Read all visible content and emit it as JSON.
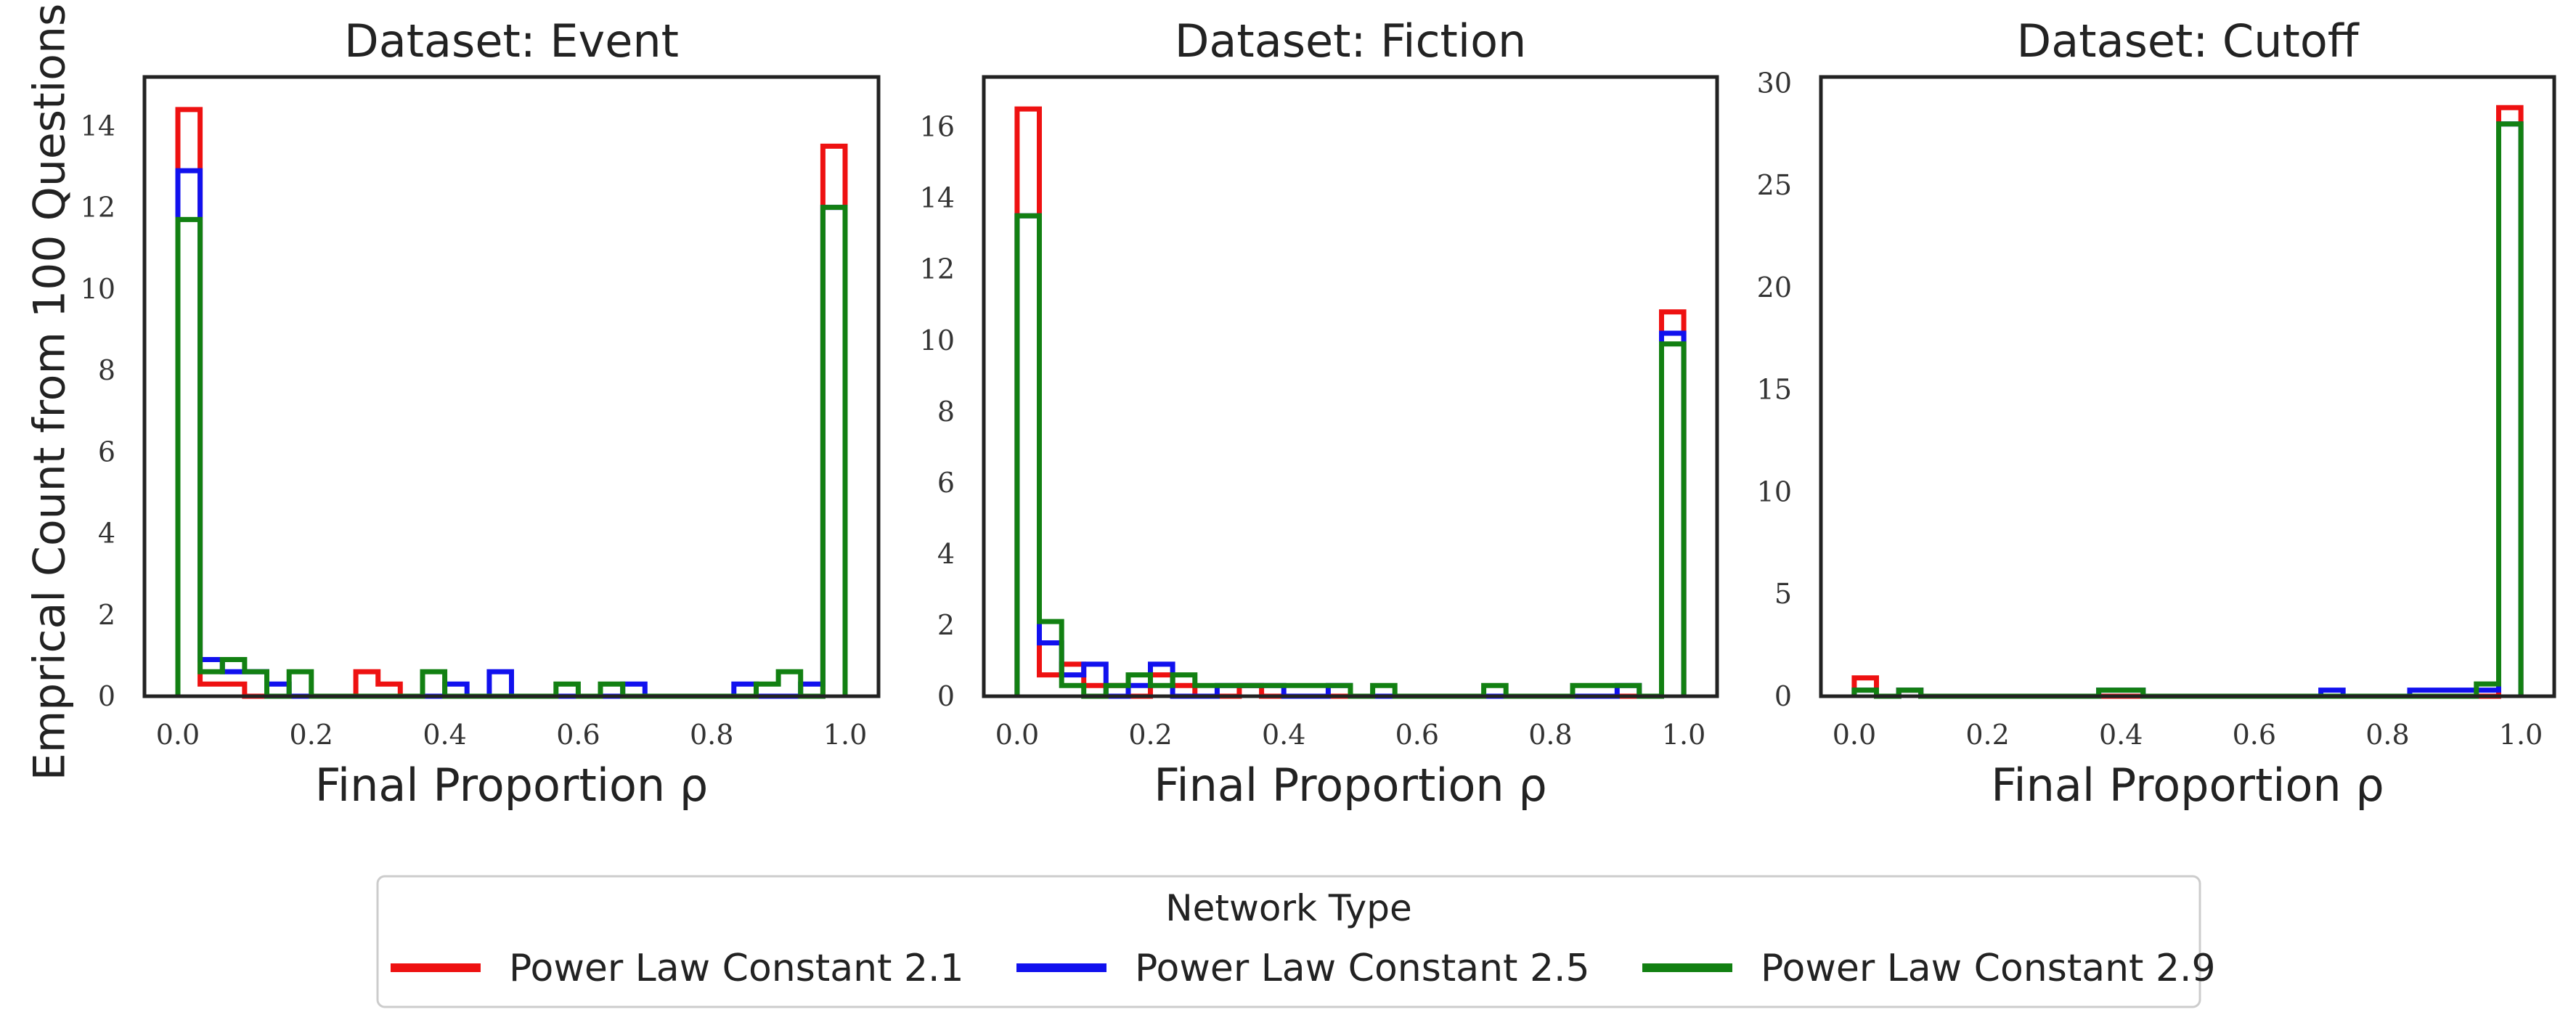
{
  "figure": {
    "ylabel": "Emprical Count from 100 Questions",
    "legend": {
      "title": "Network Type",
      "placement": "bottom-center"
    }
  },
  "chart_data": [
    {
      "type": "histogram",
      "title": "Dataset: Event",
      "xlabel": "Final Proportion ρ",
      "xlim": [
        -0.05,
        1.05
      ],
      "ylim": [
        0,
        15.2
      ],
      "xticks": [
        "0.0",
        "0.2",
        "0.4",
        "0.6",
        "0.8",
        "1.0"
      ],
      "xtick_values": [
        0.0,
        0.2,
        0.4,
        0.6,
        0.8,
        1.0
      ],
      "yticks": [
        "0",
        "2",
        "4",
        "6",
        "8",
        "10",
        "12",
        "14"
      ],
      "ytick_values": [
        0,
        2,
        4,
        6,
        8,
        10,
        12,
        14
      ],
      "bin_edges": [
        0.0,
        0.0333,
        0.0667,
        0.1,
        0.1333,
        0.1667,
        0.2,
        0.2333,
        0.2667,
        0.3,
        0.3333,
        0.3667,
        0.4,
        0.4333,
        0.4667,
        0.5,
        0.5333,
        0.5667,
        0.6,
        0.6333,
        0.6667,
        0.7,
        0.7333,
        0.7667,
        0.8,
        0.8333,
        0.8667,
        0.9,
        0.9333,
        0.9667,
        1.0
      ],
      "series": [
        {
          "name": "Power Law Constant 2.1",
          "color": "#ee1111",
          "counts": [
            14.4,
            0.3,
            0.3,
            0,
            0,
            0,
            0,
            0,
            0.6,
            0.3,
            0,
            0,
            0,
            0,
            0,
            0,
            0,
            0,
            0,
            0,
            0,
            0,
            0,
            0,
            0,
            0,
            0,
            0,
            0,
            13.5
          ]
        },
        {
          "name": "Power Law Constant 2.5",
          "color": "#1111ee",
          "counts": [
            12.9,
            0.9,
            0.6,
            0.6,
            0.3,
            0,
            0,
            0,
            0,
            0,
            0,
            0,
            0.3,
            0,
            0.6,
            0,
            0,
            0,
            0,
            0,
            0.3,
            0,
            0,
            0,
            0,
            0.3,
            0,
            0,
            0.3,
            12
          ]
        },
        {
          "name": "Power Law Constant 2.9",
          "color": "#128012",
          "counts": [
            11.7,
            0.6,
            0.9,
            0.6,
            0,
            0.6,
            0,
            0,
            0,
            0,
            0,
            0.6,
            0,
            0,
            0,
            0,
            0,
            0.3,
            0,
            0.3,
            0,
            0,
            0,
            0,
            0,
            0,
            0.3,
            0.6,
            0,
            12
          ]
        }
      ]
    },
    {
      "type": "histogram",
      "title": "Dataset: Fiction",
      "xlabel": "Final Proportion ρ",
      "xlim": [
        -0.05,
        1.05
      ],
      "ylim": [
        0,
        17.4
      ],
      "xticks": [
        "0.0",
        "0.2",
        "0.4",
        "0.6",
        "0.8",
        "1.0"
      ],
      "xtick_values": [
        0.0,
        0.2,
        0.4,
        0.6,
        0.8,
        1.0
      ],
      "yticks": [
        "0",
        "2",
        "4",
        "6",
        "8",
        "10",
        "12",
        "14",
        "16"
      ],
      "ytick_values": [
        0,
        2,
        4,
        6,
        8,
        10,
        12,
        14,
        16
      ],
      "bin_edges": [
        0.0,
        0.0333,
        0.0667,
        0.1,
        0.1333,
        0.1667,
        0.2,
        0.2333,
        0.2667,
        0.3,
        0.3333,
        0.3667,
        0.4,
        0.4333,
        0.4667,
        0.5,
        0.5333,
        0.5667,
        0.6,
        0.6333,
        0.6667,
        0.7,
        0.7333,
        0.7667,
        0.8,
        0.8333,
        0.8667,
        0.9,
        0.9333,
        0.9667,
        1.0
      ],
      "series": [
        {
          "name": "Power Law Constant 2.1",
          "color": "#ee1111",
          "counts": [
            16.5,
            0.6,
            0.9,
            0.3,
            0.3,
            0,
            0.6,
            0.3,
            0,
            0,
            0.3,
            0,
            0,
            0,
            0,
            0,
            0,
            0,
            0,
            0,
            0,
            0,
            0,
            0,
            0,
            0,
            0,
            0,
            0,
            10.8
          ]
        },
        {
          "name": "Power Law Constant 2.5",
          "color": "#1111ee",
          "counts": [
            13.5,
            1.5,
            0.6,
            0.9,
            0,
            0.3,
            0.9,
            0,
            0,
            0.3,
            0.3,
            0.3,
            0,
            0,
            0.3,
            0,
            0,
            0,
            0,
            0,
            0,
            0,
            0,
            0,
            0,
            0,
            0,
            0.3,
            0,
            10.2
          ]
        },
        {
          "name": "Power Law Constant 2.9",
          "color": "#128012",
          "counts": [
            13.5,
            2.1,
            0.3,
            0,
            0.3,
            0.6,
            0.3,
            0.6,
            0.3,
            0.3,
            0.3,
            0.3,
            0.3,
            0.3,
            0.3,
            0,
            0.3,
            0,
            0,
            0,
            0,
            0.3,
            0,
            0,
            0,
            0.3,
            0.3,
            0.3,
            0,
            9.9
          ]
        }
      ]
    },
    {
      "type": "histogram",
      "title": "Dataset: Cutoff",
      "xlabel": "Final Proportion ρ",
      "xlim": [
        -0.05,
        1.05
      ],
      "ylim": [
        0,
        30.3
      ],
      "xticks": [
        "0.0",
        "0.2",
        "0.4",
        "0.6",
        "0.8",
        "1.0"
      ],
      "xtick_values": [
        0.0,
        0.2,
        0.4,
        0.6,
        0.8,
        1.0
      ],
      "yticks": [
        "0",
        "5",
        "10",
        "15",
        "20",
        "25",
        "30"
      ],
      "ytick_values": [
        0,
        5,
        10,
        15,
        20,
        25,
        30
      ],
      "bin_edges": [
        0.0,
        0.0333,
        0.0667,
        0.1,
        0.1333,
        0.1667,
        0.2,
        0.2333,
        0.2667,
        0.3,
        0.3333,
        0.3667,
        0.4,
        0.4333,
        0.4667,
        0.5,
        0.5333,
        0.5667,
        0.6,
        0.6333,
        0.6667,
        0.7,
        0.7333,
        0.7667,
        0.8,
        0.8333,
        0.8667,
        0.9,
        0.9333,
        0.9667,
        1.0
      ],
      "series": [
        {
          "name": "Power Law Constant 2.1",
          "color": "#ee1111",
          "counts": [
            0.9,
            0,
            0.3,
            0,
            0,
            0,
            0,
            0,
            0,
            0,
            0,
            0,
            0,
            0,
            0,
            0,
            0,
            0,
            0,
            0,
            0,
            0,
            0,
            0,
            0,
            0,
            0,
            0,
            0,
            28.8
          ]
        },
        {
          "name": "Power Law Constant 2.5",
          "color": "#1111ee",
          "counts": [
            0.3,
            0,
            0.3,
            0,
            0,
            0,
            0,
            0,
            0,
            0,
            0,
            0.3,
            0.3,
            0,
            0,
            0,
            0,
            0,
            0,
            0,
            0,
            0.3,
            0,
            0,
            0,
            0.3,
            0.3,
            0.3,
            0.3,
            28
          ]
        },
        {
          "name": "Power Law Constant 2.9",
          "color": "#128012",
          "counts": [
            0.3,
            0,
            0.3,
            0,
            0,
            0,
            0,
            0,
            0,
            0,
            0,
            0.3,
            0.3,
            0,
            0,
            0,
            0,
            0,
            0,
            0,
            0,
            0,
            0,
            0,
            0,
            0,
            0,
            0,
            0.6,
            28
          ]
        }
      ]
    }
  ]
}
